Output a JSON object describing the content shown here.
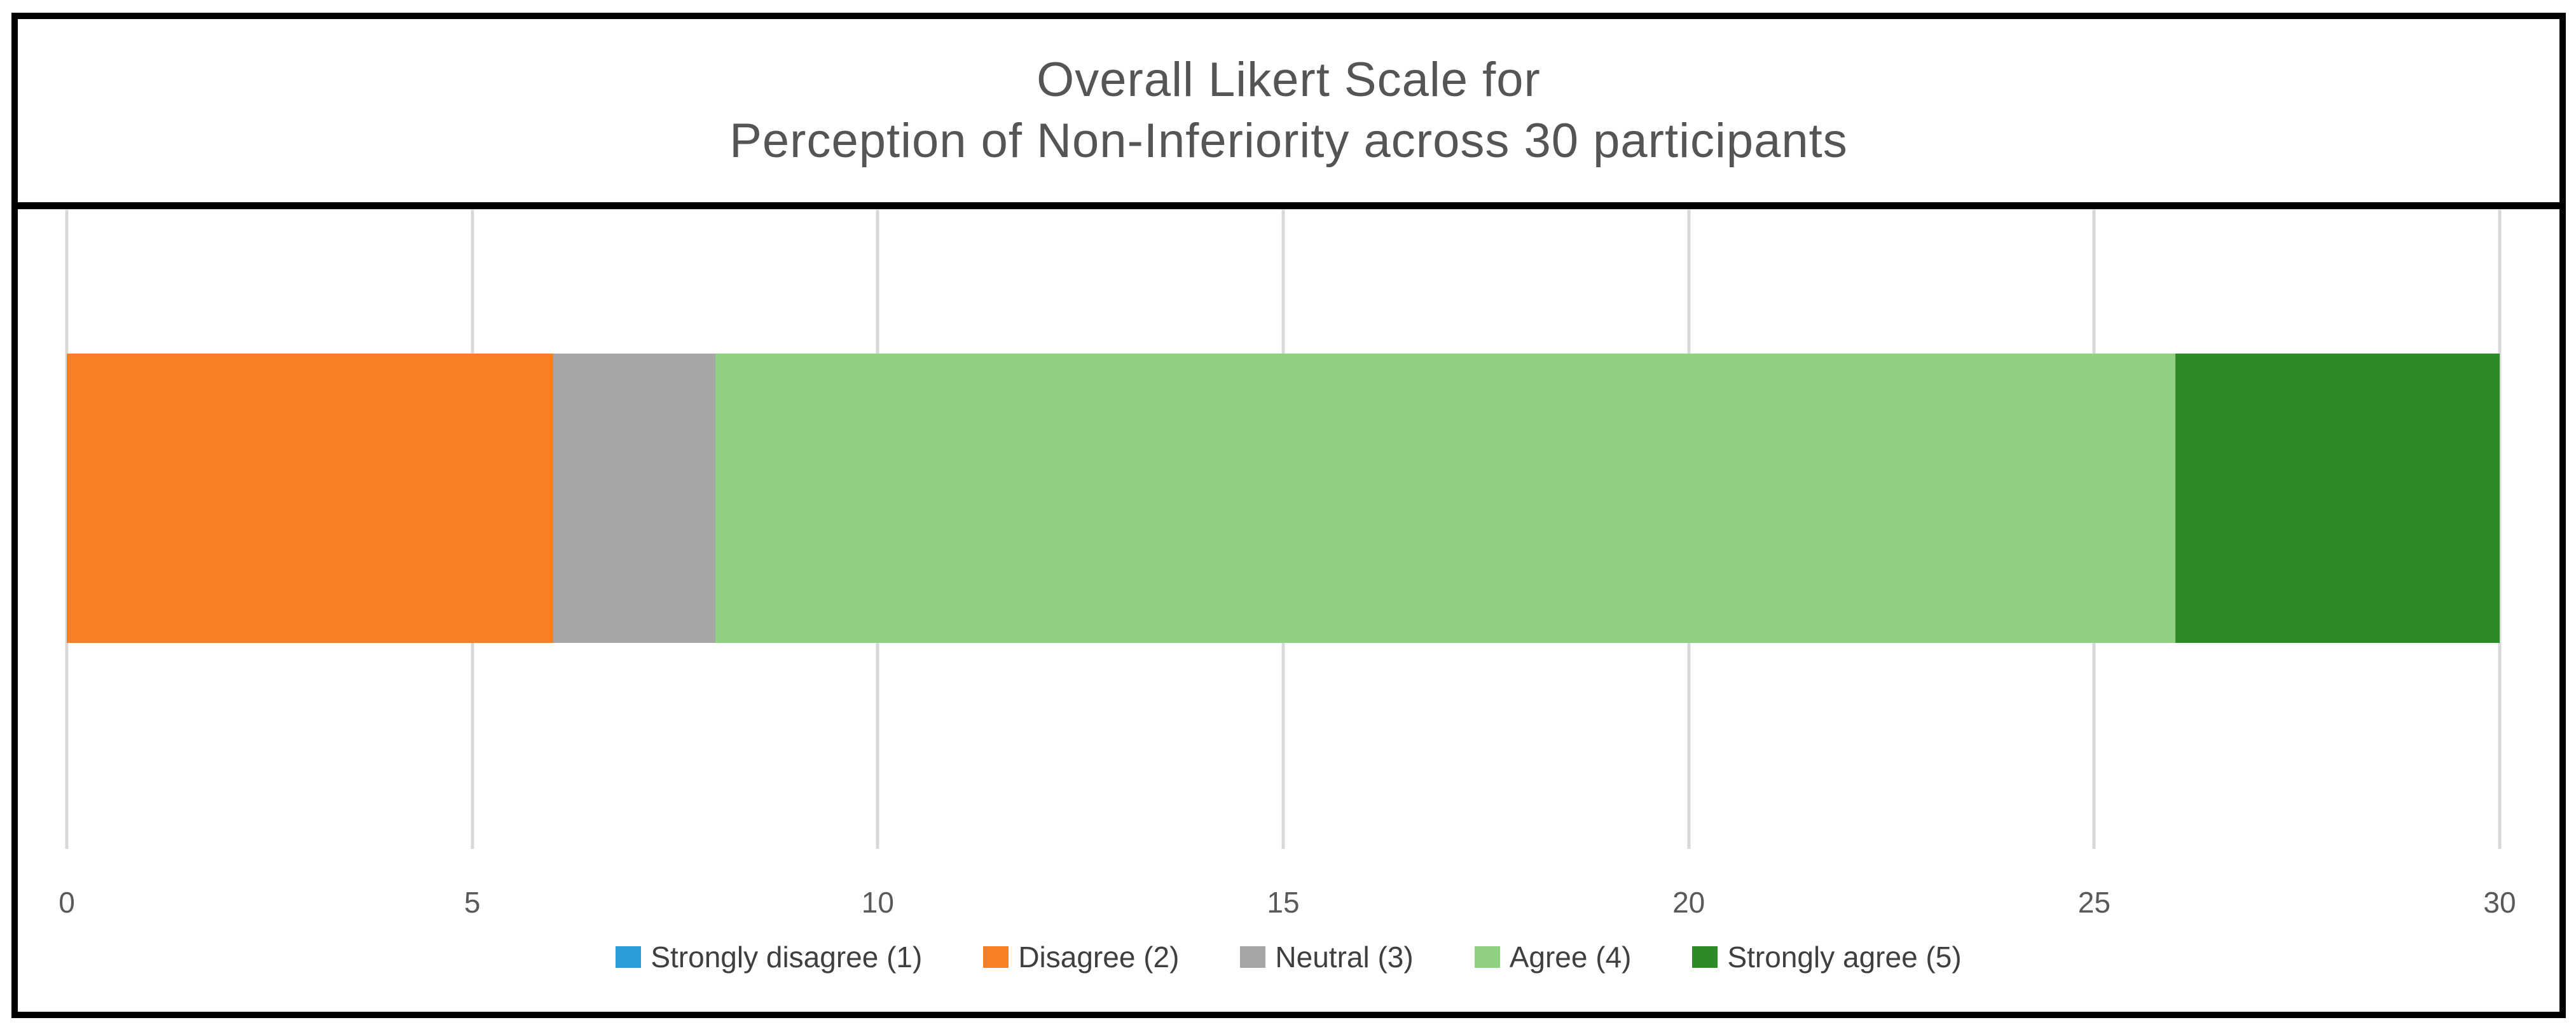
{
  "title": {
    "line1": "Overall Likert Scale for",
    "line2": "Perception of Non-Inferiority across 30 participants"
  },
  "chart_data": {
    "type": "bar",
    "orientation": "horizontal",
    "stacked": true,
    "title": "Overall Likert Scale for Perception of Non-Inferiority across 30 participants",
    "title_lines": [
      "Overall Likert Scale for",
      "Perception of Non-Inferiority across 30 participants"
    ],
    "series": [
      {
        "name": "Strongly disagree (1)",
        "value": 0,
        "color": "#2b9dd8"
      },
      {
        "name": "Disagree (2)",
        "value": 6,
        "color": "#fa7e23"
      },
      {
        "name": "Neutral (3)",
        "value": 2,
        "color": "#a6a6a6"
      },
      {
        "name": "Agree (4)",
        "value": 18,
        "color": "#90d083"
      },
      {
        "name": "Strongly agree (5)",
        "value": 4,
        "color": "#2e8a26"
      }
    ],
    "total_participants": 30,
    "xlim": [
      0,
      30
    ],
    "xticks": [
      0,
      5,
      10,
      15,
      20,
      25,
      30
    ],
    "grid": true,
    "legend_position": "bottom",
    "colors": {
      "title_text": "#555555",
      "tick_text": "#595959",
      "legend_text": "#3f3f3f",
      "gridline": "#d8d8d8",
      "border": "#000000"
    }
  }
}
